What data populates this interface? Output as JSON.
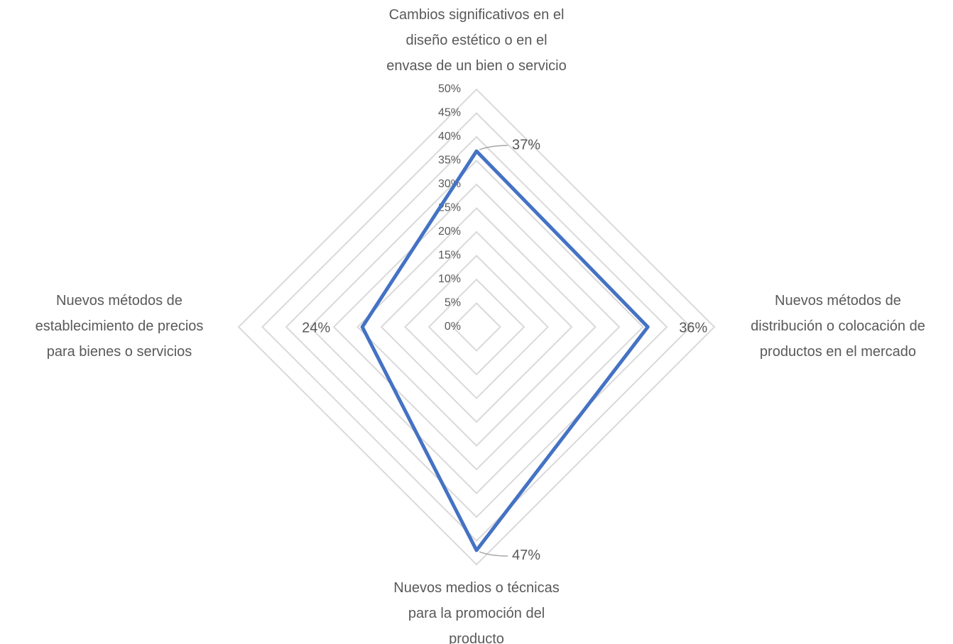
{
  "chart_data": {
    "type": "radar",
    "categories": [
      "Cambios significativos en el\ndiseño estético o en el\nenvase de un bien o servicio",
      "Nuevos métodos de\ndistribución o colocación de\nproductos en el mercado",
      "Nuevos medios o técnicas\npara la promoción del\nproducto",
      "Nuevos métodos de\nestablecimiento de precios\npara bienes o servicios"
    ],
    "series": [
      {
        "color": "#4472c4",
        "values": [
          37,
          36,
          47,
          24
        ],
        "value_labels": [
          "37%",
          "36%",
          "47%",
          "24%"
        ]
      }
    ],
    "ylim": [
      0,
      50
    ],
    "yticks": [
      {
        "value": 0,
        "label": "0%"
      },
      {
        "value": 5,
        "label": "5%"
      },
      {
        "value": 10,
        "label": "10%"
      },
      {
        "value": 15,
        "label": "15%"
      },
      {
        "value": 20,
        "label": "20%"
      },
      {
        "value": 25,
        "label": "25%"
      },
      {
        "value": 30,
        "label": "30%"
      },
      {
        "value": 35,
        "label": "35%"
      },
      {
        "value": 40,
        "label": "40%"
      },
      {
        "value": 45,
        "label": "45%"
      },
      {
        "value": 50,
        "label": "50%"
      }
    ],
    "grid": true
  }
}
